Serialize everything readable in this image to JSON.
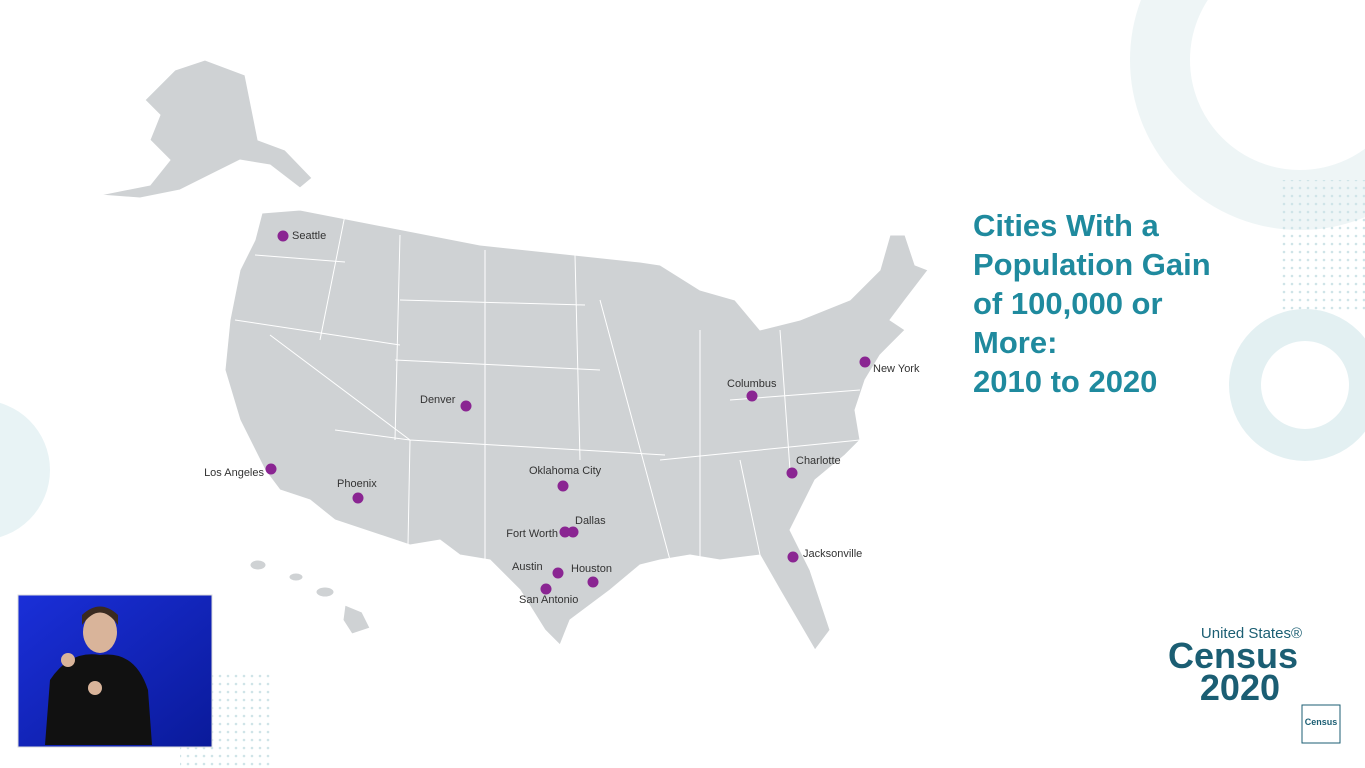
{
  "title_lines": [
    "Cities With a",
    "Population Gain",
    "of 100,000 or",
    "More:",
    "2010 to 2020"
  ],
  "cities": [
    "Seattle",
    "New York",
    "Columbus",
    "Denver",
    "Los Angeles",
    "Phoenix",
    "Oklahoma City",
    "Charlotte",
    "Fort Worth",
    "Dallas",
    "Austin",
    "Houston",
    "San Antonio",
    "Jacksonville"
  ],
  "logo": {
    "top": "United States®",
    "middle": "Census",
    "bottom": "2020",
    "badge": "Census"
  }
}
